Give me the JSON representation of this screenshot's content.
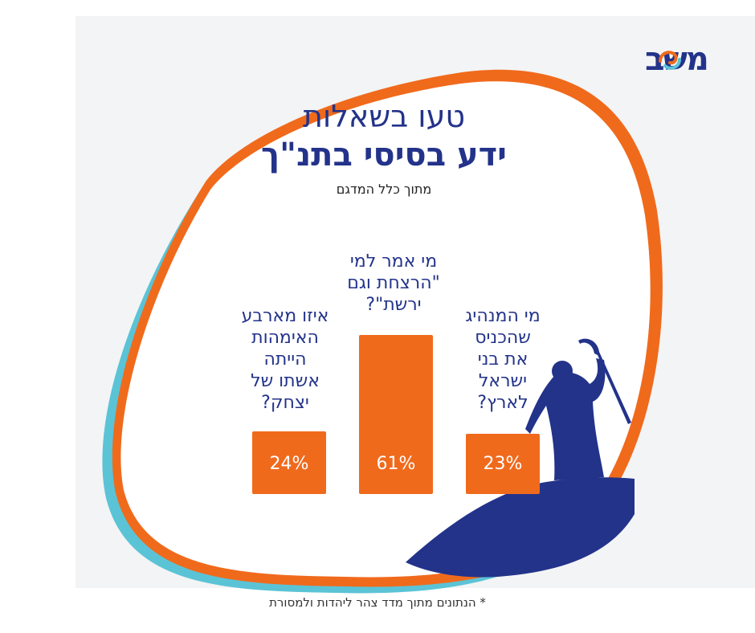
{
  "brand": {
    "logo_text": "משב",
    "logo_color": "#23338a",
    "accent_orange": "#f06a1c",
    "accent_teal": "#5bc3d6"
  },
  "header": {
    "title_line1": "טעו בשאלות",
    "title_line2": "ידע בסיסי בתנ\"ך",
    "subtitle": "מתוך כלל המדגם"
  },
  "illustration": {
    "icon": "moses-with-staff-icon",
    "hill": "hill-icon"
  },
  "chart_data": {
    "type": "bar",
    "unit": "%",
    "bar_color": "#f06a1c",
    "ylim": [
      0,
      100
    ],
    "categories": [
      "איזו מארבע\nהאימהות\nהייתה\nאשתו של\nיצחק?",
      "מי אמר למי\n\"הרצחת וגם\nירשת\"?",
      "מי המנהיג\nשהכניס\nאת בני\nישראל\nלארץ?"
    ],
    "values": [
      24,
      61,
      23
    ],
    "value_labels": [
      "24%",
      "61%",
      "23%"
    ]
  },
  "footer": {
    "note": "* הנתונים מתוך מדד צהר ליהדות ולמסורת"
  }
}
